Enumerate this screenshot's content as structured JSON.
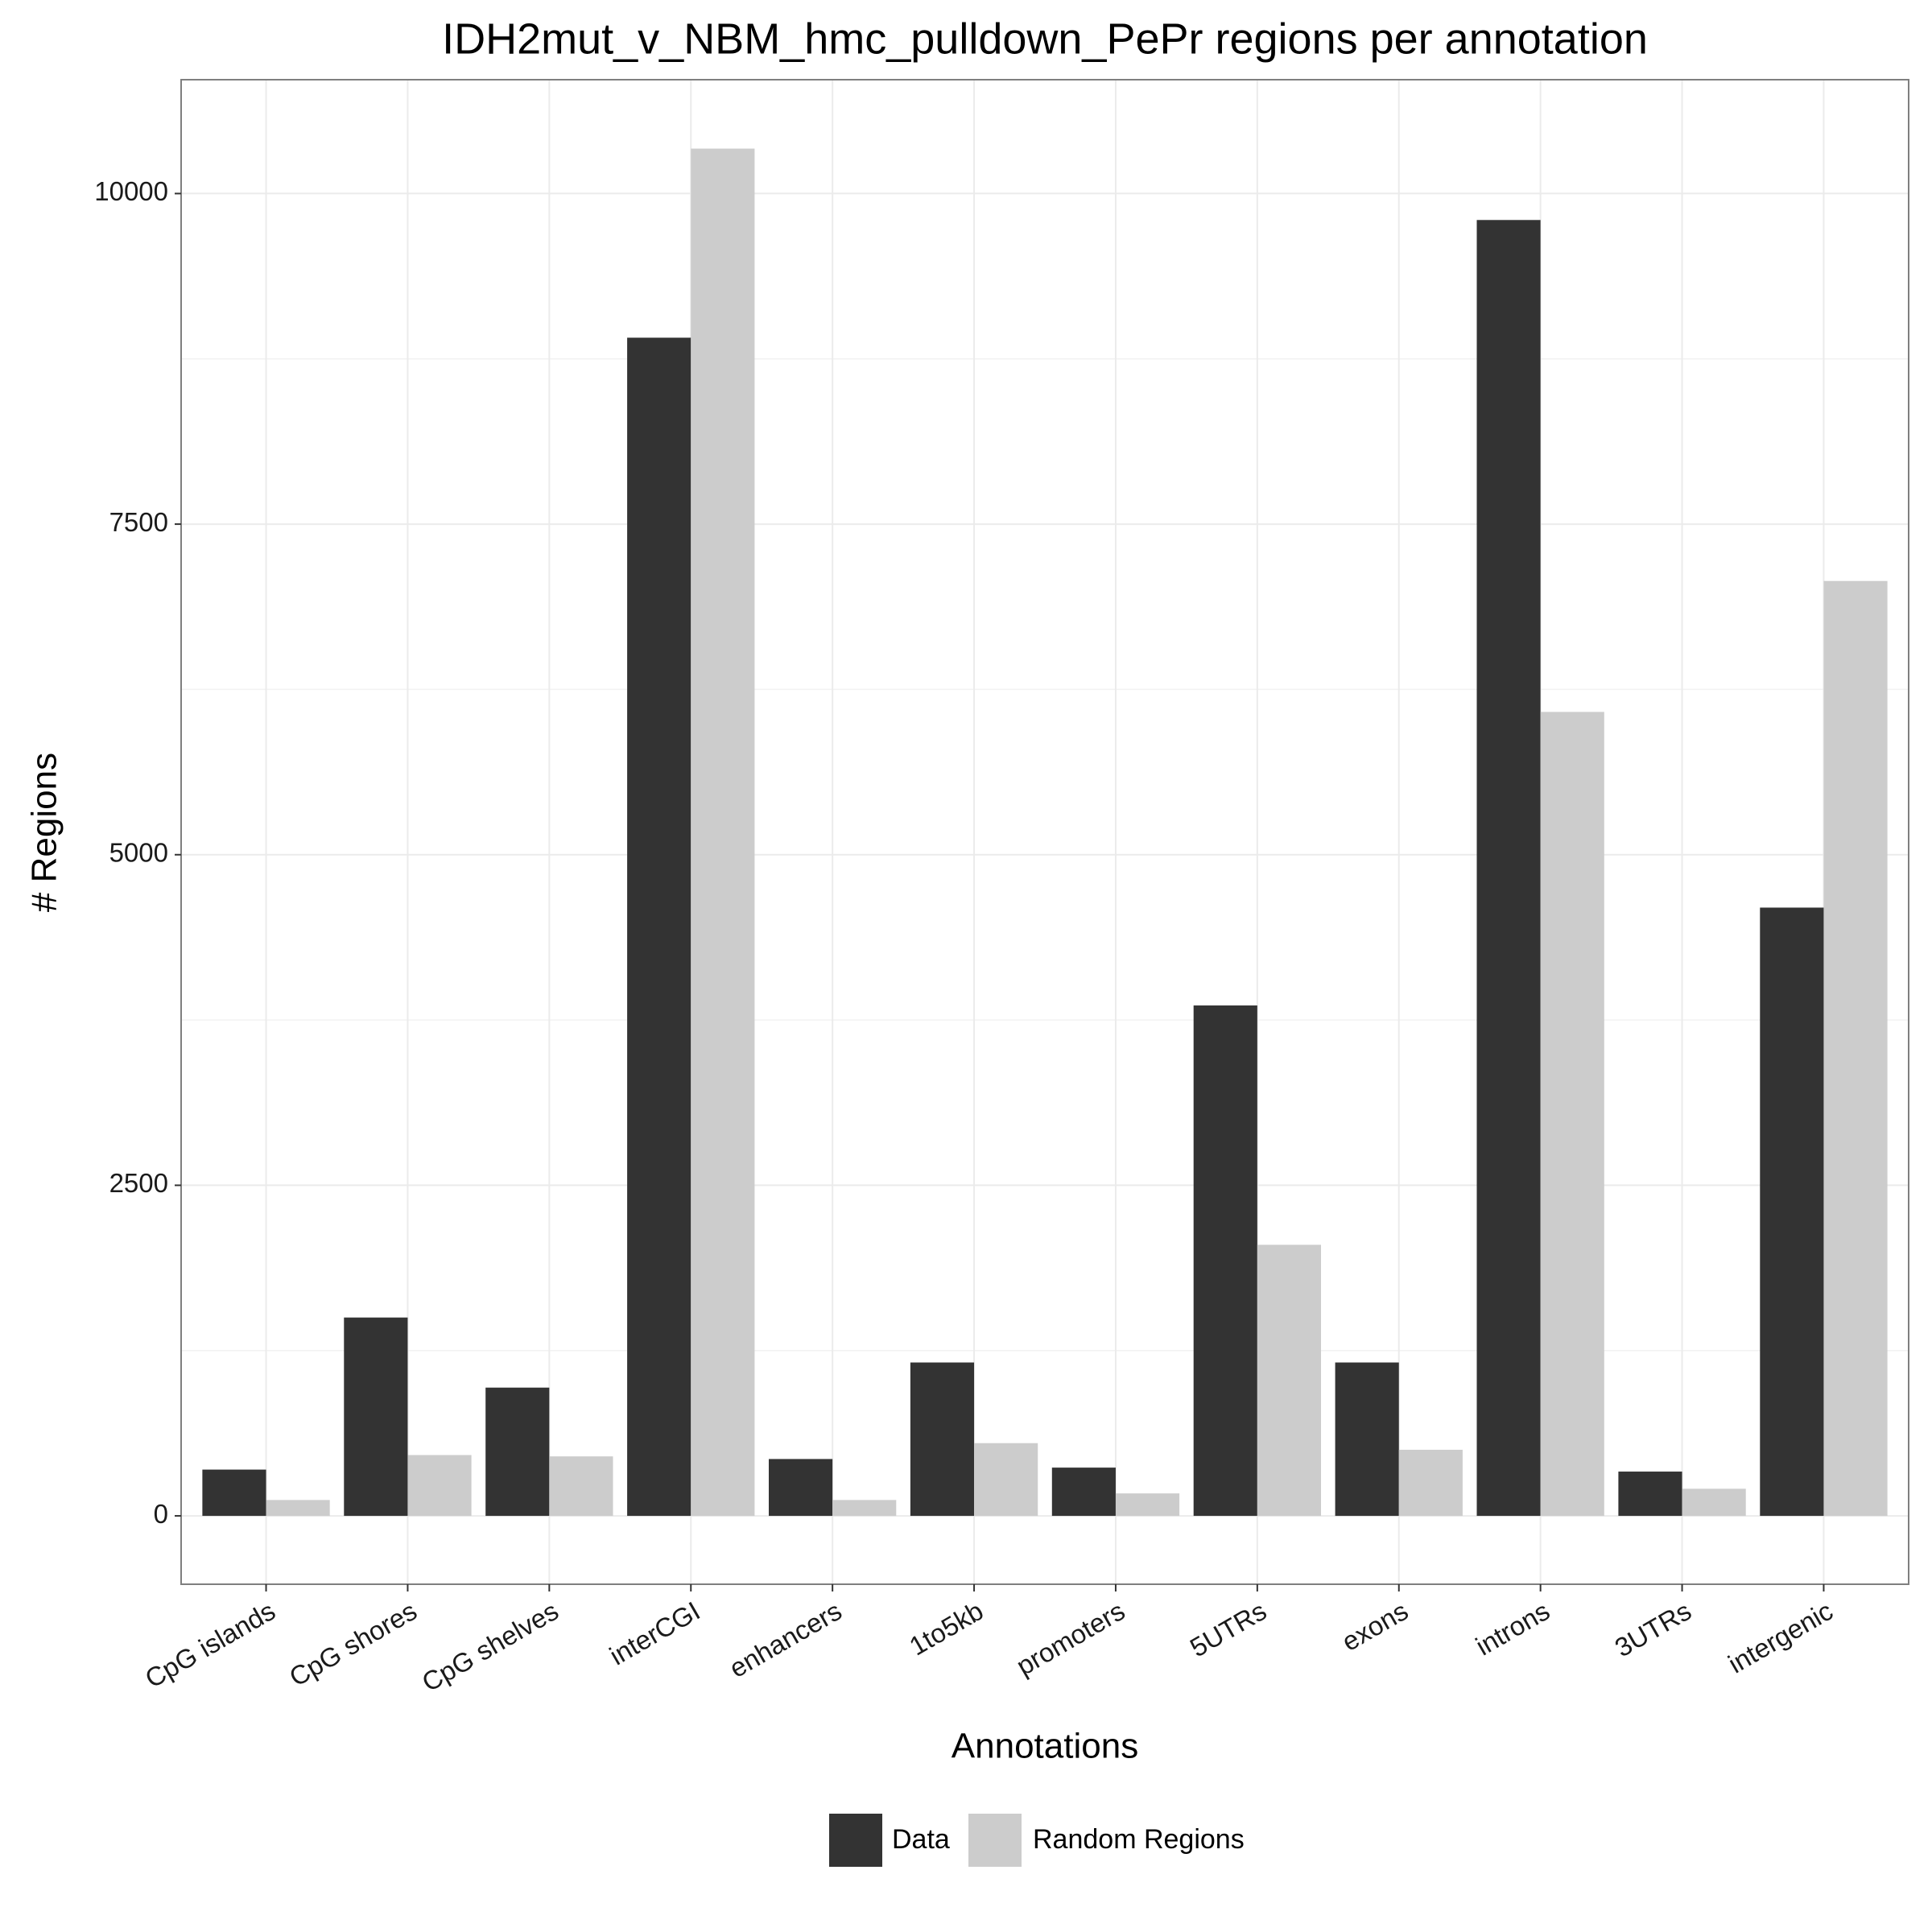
{
  "chart_data": {
    "type": "bar",
    "title": "IDH2mut_v_NBM_hmc_pulldown_PePr regions per annotation",
    "xlabel": "Annotations",
    "ylabel": "# Regions",
    "categories": [
      "CpG islands",
      "CpG shores",
      "CpG shelves",
      "interCGI",
      "enhancers",
      "1to5kb",
      "promoters",
      "5UTRs",
      "exons",
      "introns",
      "3UTRs",
      "intergenic"
    ],
    "series": [
      {
        "name": "Data",
        "color": "#333333",
        "values": [
          350,
          1500,
          970,
          8910,
          430,
          1160,
          365,
          3860,
          1160,
          9800,
          335,
          4600
        ]
      },
      {
        "name": "Random Regions",
        "color": "#CCCCCC",
        "values": [
          120,
          460,
          450,
          10340,
          120,
          550,
          170,
          2050,
          500,
          6080,
          205,
          7070
        ]
      }
    ],
    "yticks": [
      0,
      2500,
      5000,
      7500,
      10000
    ],
    "ylim": [
      -517,
      10861
    ],
    "grid": true,
    "legend": "bottom"
  }
}
